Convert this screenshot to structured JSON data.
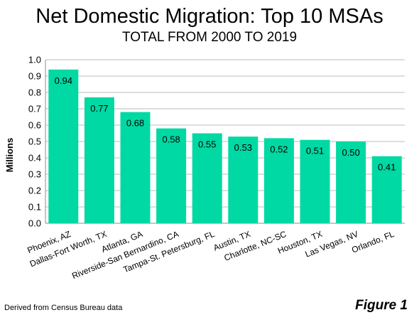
{
  "chart_data": {
    "type": "bar",
    "title": "Net Domestic Migration: Top 10 MSAs",
    "subtitle": "TOTAL FROM 2000 TO 2019",
    "ylabel": "Millions",
    "xlabel": "",
    "categories": [
      "Phoenix, AZ",
      "Dallas-Fort Worth, TX",
      "Atlanta, GA",
      "Riverside-San Bernardino, CA",
      "Tampa-St. Petersburg, FL",
      "Austin, TX",
      "Charlotte, NC-SC",
      "Houston, TX",
      "Las Vegas, NV",
      "Orlando, FL"
    ],
    "values": [
      0.94,
      0.77,
      0.68,
      0.58,
      0.55,
      0.53,
      0.52,
      0.51,
      0.5,
      0.41
    ],
    "data_labels": [
      "0.94",
      "0.77",
      "0.68",
      "0.58",
      "0.55",
      "0.53",
      "0.52",
      "0.51",
      "0.50",
      "0.41"
    ],
    "yticks": [
      "0.0",
      "0.1",
      "0.2",
      "0.3",
      "0.4",
      "0.5",
      "0.6",
      "0.7",
      "0.8",
      "0.9",
      "1.0"
    ],
    "ylim": [
      0,
      1.0
    ],
    "grid": true,
    "bar_color": "#00d9a3"
  },
  "footer": {
    "source": "Derived from Census Bureau data",
    "figure_label": "Figure 1"
  }
}
